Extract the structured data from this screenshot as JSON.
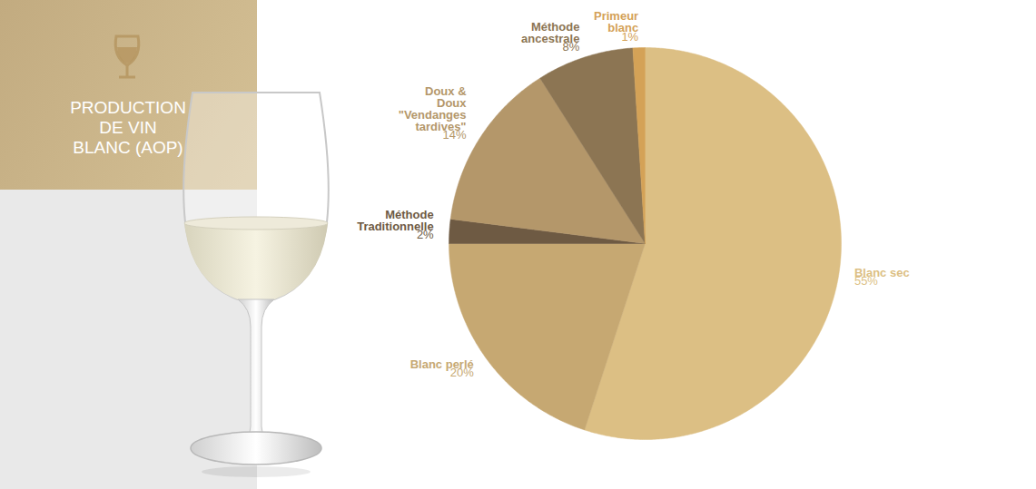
{
  "chart_data": {
    "type": "pie",
    "title": "PRODUCTION DE VIN BLANC (AOP)",
    "categories": [
      "Blanc sec",
      "Blanc perlé",
      "Méthode Traditionnelle",
      "Doux & Doux \"Vendanges tardives\"",
      "Méthode ancestrale",
      "Primeur blanc"
    ],
    "values": [
      55,
      20,
      2,
      14,
      8,
      1
    ],
    "value_labels": [
      "55%",
      "20%",
      "2%",
      "14%",
      "8%",
      "1%"
    ],
    "colors": [
      "#dcbf84",
      "#c6a872",
      "#6e5a43",
      "#b4976a",
      "#8c7553",
      "#d4a257"
    ],
    "data_labels": true
  }
}
